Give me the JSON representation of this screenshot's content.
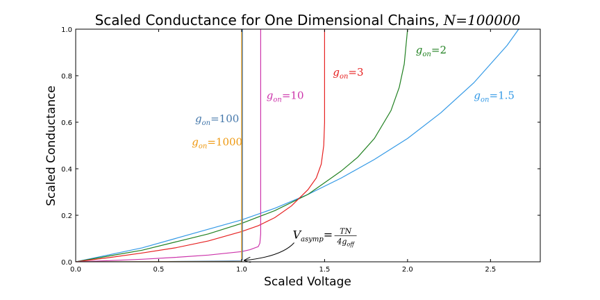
{
  "chart_data": {
    "type": "line",
    "title_prefix": "Scaled Conductance for One Dimensional Chains, ",
    "title_math": "N=100000",
    "xlabel": "Scaled Voltage",
    "ylabel": "Scaled Conductance",
    "xlim": [
      0,
      2.8
    ],
    "ylim": [
      0,
      1.0
    ],
    "xticks": [
      "0.0",
      "0.5",
      "1.0",
      "1.5",
      "2.0",
      "2.5"
    ],
    "yticks": [
      "0.0",
      "0.2",
      "0.4",
      "0.6",
      "0.8",
      "1.0"
    ],
    "grid": false,
    "series": [
      {
        "name_main": "g",
        "name_sub": "on",
        "name_value": "=1.5",
        "color": "#3399e6",
        "x": [
          0,
          0.2,
          0.4,
          0.6,
          0.8,
          1.0,
          1.2,
          1.4,
          1.6,
          1.8,
          2.0,
          2.2,
          2.4,
          2.6,
          2.67
        ],
        "y": [
          0,
          0.03,
          0.06,
          0.1,
          0.14,
          0.18,
          0.23,
          0.29,
          0.36,
          0.44,
          0.53,
          0.64,
          0.77,
          0.93,
          1.0
        ]
      },
      {
        "name_main": "g",
        "name_sub": "on",
        "name_value": "=2",
        "color": "#208020",
        "x": [
          0,
          0.2,
          0.4,
          0.6,
          0.8,
          1.0,
          1.2,
          1.4,
          1.5,
          1.6,
          1.7,
          1.8,
          1.9,
          1.95,
          1.98,
          2.0
        ],
        "y": [
          0,
          0.025,
          0.05,
          0.085,
          0.12,
          0.165,
          0.22,
          0.29,
          0.34,
          0.39,
          0.45,
          0.53,
          0.65,
          0.75,
          0.85,
          1.0
        ]
      },
      {
        "name_main": "g",
        "name_sub": "on",
        "name_value": "=3",
        "color": "#e62020",
        "x": [
          0,
          0.2,
          0.4,
          0.6,
          0.8,
          1.0,
          1.1,
          1.2,
          1.3,
          1.4,
          1.45,
          1.48,
          1.495,
          1.5,
          1.5
        ],
        "y": [
          0,
          0.018,
          0.038,
          0.06,
          0.09,
          0.13,
          0.155,
          0.19,
          0.24,
          0.31,
          0.36,
          0.42,
          0.5,
          0.6,
          1.0
        ]
      },
      {
        "name_main": "g",
        "name_sub": "on",
        "name_value": "=10",
        "color": "#cc33aa",
        "x": [
          0,
          0.2,
          0.4,
          0.6,
          0.8,
          1.0,
          1.05,
          1.1,
          1.11,
          1.115,
          1.115
        ],
        "y": [
          0,
          0.005,
          0.011,
          0.019,
          0.029,
          0.044,
          0.052,
          0.065,
          0.08,
          0.12,
          1.0
        ]
      },
      {
        "name_main": "g",
        "name_sub": "on",
        "name_value": "=100",
        "color": "#4477aa",
        "x": [
          0,
          0.5,
          0.9,
          1.0,
          1.005,
          1.005
        ],
        "y": [
          0,
          0.001,
          0.003,
          0.004,
          0.01,
          1.0
        ]
      },
      {
        "name_main": "g",
        "name_sub": "on",
        "name_value": "=1000",
        "color": "#ee9911",
        "x": [
          0,
          0.5,
          0.9,
          1.0,
          1.0,
          1.0
        ],
        "y": [
          0,
          0.0002,
          0.0004,
          0.0006,
          0.005,
          1.0
        ]
      }
    ],
    "annotation": {
      "lhs_main": "V",
      "lhs_sub": "asymp",
      "eq": "=",
      "numerator": "TN",
      "denominator_prefix": "4g",
      "denominator_sub": "off",
      "target_x": 1.0,
      "target_y": 0.0,
      "text_x": 1.3,
      "text_y": 0.1
    }
  }
}
